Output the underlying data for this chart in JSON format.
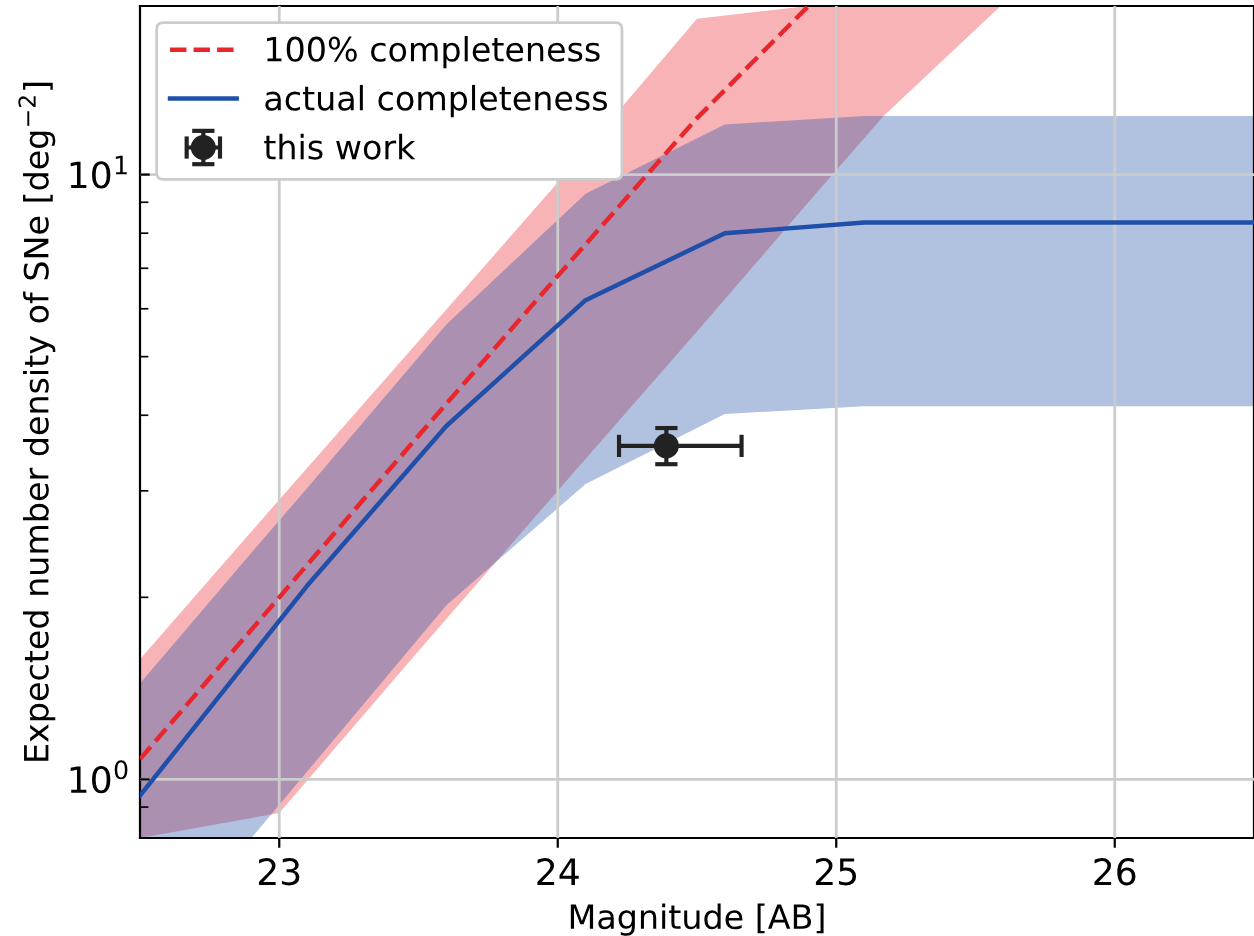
{
  "chart_data": {
    "type": "line",
    "xlabel": "Magnitude [AB]",
    "ylabel": "Expected number density of SNe [deg$^{−2}$]",
    "log": "y",
    "grid": true,
    "legend": "top left",
    "xlim": [
      22.5,
      26.5
    ],
    "xticks": [
      23,
      24,
      25,
      26
    ],
    "ylim": [
      0.8,
      19
    ],
    "yticks": [
      {
        "value": 1,
        "label": "10$^{0}$"
      },
      {
        "value": 10,
        "label": "10$^{1}$"
      }
    ],
    "series": [
      {
        "name": "100% completeness",
        "color": "#e8262b",
        "line_style": "dashed",
        "x": [
          22.5,
          23,
          23.5,
          24,
          24.5,
          24.9,
          25.17,
          25.59
        ],
        "values": [
          1.08,
          2.0,
          3.7,
          6.8,
          12.4,
          19,
          null,
          null
        ],
        "lower": [
          0.8,
          0.88,
          1.63,
          3.0,
          5.5,
          9.0,
          12.5,
          19
        ],
        "upper": [
          1.58,
          2.9,
          5.3,
          9.7,
          18.1,
          19,
          19,
          19
        ]
      },
      {
        "name": "actual completeness",
        "color": "#1f4fa8",
        "line_style": "solid",
        "x": [
          22.5,
          22.9,
          23.1,
          23.6,
          24.1,
          24.6,
          25.1,
          26.5
        ],
        "values": [
          0.94,
          1.6,
          2.09,
          3.84,
          6.2,
          8.0,
          8.33,
          8.33
        ],
        "lower": [
          0.8,
          0.8,
          1.03,
          1.94,
          3.08,
          4.02,
          4.14,
          4.14
        ],
        "upper": [
          1.44,
          2.37,
          3.03,
          5.65,
          9.3,
          12.1,
          12.5,
          12.5
        ]
      },
      {
        "name": "this work",
        "type": "scatter",
        "color": "#222222",
        "marker": "circle",
        "x": [
          24.39
        ],
        "values": [
          3.56
        ],
        "errors": [
          [
            3.32,
            3.81
          ]
        ],
        "xerrors": [
          [
            24.22,
            24.66
          ]
        ]
      }
    ]
  }
}
